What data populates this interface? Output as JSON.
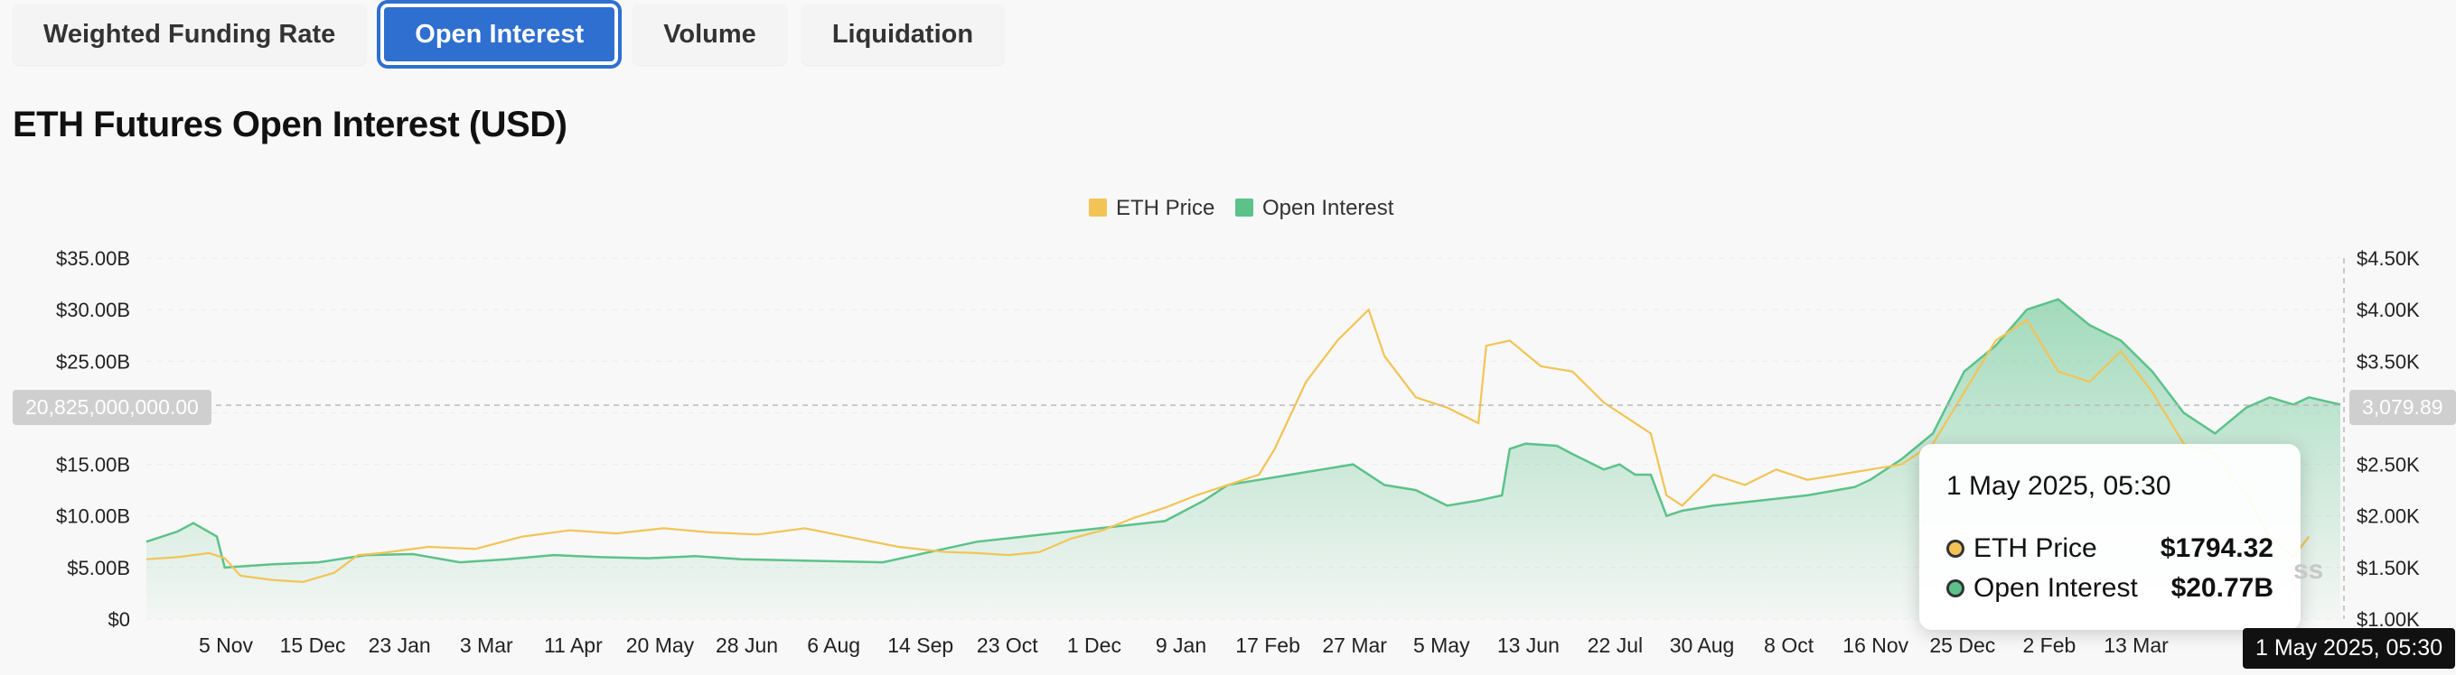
{
  "tabs": [
    {
      "label": "Weighted Funding Rate",
      "active": false
    },
    {
      "label": "Open Interest",
      "active": true
    },
    {
      "label": "Volume",
      "active": false
    },
    {
      "label": "Liquidation",
      "active": false
    }
  ],
  "title": "ETH Futures Open Interest (USD)",
  "colors": {
    "eth_price": "#f2c456",
    "open_interest": "#5cc28a",
    "accent": "#2f6fd0"
  },
  "tooltip": {
    "date": "1 May 2025, 05:30",
    "rows": [
      {
        "label": "ETH Price",
        "value": "$1794.32"
      },
      {
        "label": "Open Interest",
        "value": "$20.77B"
      }
    ]
  },
  "crosshair": {
    "left_value": "20,825,000,000.00",
    "right_value": "3,079.89",
    "date": "1 May 2025, 05:30"
  },
  "watermark": "ss",
  "chart_data": {
    "type": "area",
    "legend": [
      "ETH Price",
      "Open Interest"
    ],
    "legend_position": "top-center",
    "grid": true,
    "x_ticks": [
      "5 Nov",
      "15 Dec",
      "23 Jan",
      "3 Mar",
      "11 Apr",
      "20 May",
      "28 Jun",
      "6 Aug",
      "14 Sep",
      "23 Oct",
      "1 Dec",
      "9 Jan",
      "17 Feb",
      "27 Mar",
      "5 May",
      "13 Jun",
      "22 Jul",
      "30 Aug",
      "8 Oct",
      "16 Nov",
      "25 Dec",
      "2 Feb",
      "13 Mar"
    ],
    "y_left": {
      "ticks": [
        "$0",
        "$5.00B",
        "$10.00B",
        "$15.00B",
        "$20.00B",
        "$25.00B",
        "$30.00B",
        "$35.00B"
      ],
      "range": [
        0,
        35
      ],
      "unit": "B USD"
    },
    "y_right": {
      "ticks": [
        "$1.00K",
        "$1.50K",
        "$2.00K",
        "$2.50K",
        "$3.00K",
        "$3.50K",
        "$4.00K",
        "$4.50K"
      ],
      "range": [
        1000,
        4500
      ]
    },
    "series": [
      {
        "name": "Open Interest",
        "axis": "left",
        "points": [
          [
            0,
            7.5
          ],
          [
            0.02,
            8.5
          ],
          [
            0.03,
            9.3
          ],
          [
            0.045,
            8
          ],
          [
            0.05,
            5
          ],
          [
            0.08,
            5.3
          ],
          [
            0.11,
            5.5
          ],
          [
            0.14,
            6.2
          ],
          [
            0.17,
            6.3
          ],
          [
            0.2,
            5.5
          ],
          [
            0.23,
            5.8
          ],
          [
            0.26,
            6.2
          ],
          [
            0.29,
            6.0
          ],
          [
            0.32,
            5.9
          ],
          [
            0.35,
            6.1
          ],
          [
            0.38,
            5.8
          ],
          [
            0.41,
            5.7
          ],
          [
            0.44,
            5.6
          ],
          [
            0.47,
            5.5
          ],
          [
            0.5,
            6.5
          ],
          [
            0.53,
            7.5
          ],
          [
            0.56,
            8.0
          ],
          [
            0.59,
            8.5
          ],
          [
            0.62,
            9.0
          ],
          [
            0.65,
            9.5
          ],
          [
            0.675,
            11.5
          ],
          [
            0.69,
            13
          ],
          [
            0.71,
            13.5
          ],
          [
            0.73,
            14
          ],
          [
            0.75,
            14.5
          ],
          [
            0.77,
            15
          ],
          [
            0.79,
            13
          ],
          [
            0.81,
            12.5
          ],
          [
            0.83,
            11
          ],
          [
            0.85,
            11.5
          ],
          [
            0.865,
            12
          ],
          [
            0.87,
            16.5
          ],
          [
            0.88,
            17
          ],
          [
            0.9,
            16.8
          ],
          [
            0.91,
            16
          ],
          [
            0.93,
            14.5
          ],
          [
            0.94,
            15
          ],
          [
            0.95,
            14
          ],
          [
            0.96,
            14
          ],
          [
            0.97,
            10
          ],
          [
            0.98,
            10.5
          ],
          [
            1.0,
            11
          ],
          [
            1.03,
            11.5
          ],
          [
            1.06,
            12
          ],
          [
            1.09,
            12.8
          ],
          [
            1.1,
            13.5
          ],
          [
            1.12,
            15.5
          ],
          [
            1.14,
            18
          ],
          [
            1.16,
            24
          ],
          [
            1.18,
            26.5
          ],
          [
            1.2,
            30
          ],
          [
            1.22,
            31
          ],
          [
            1.24,
            28.5
          ],
          [
            1.26,
            27
          ],
          [
            1.28,
            24
          ],
          [
            1.3,
            20
          ],
          [
            1.32,
            18
          ],
          [
            1.34,
            20.5
          ],
          [
            1.355,
            21.5
          ],
          [
            1.37,
            20.8
          ],
          [
            1.38,
            21.5
          ],
          [
            1.4,
            20.8
          ]
        ]
      },
      {
        "name": "ETH Price",
        "axis": "right",
        "points": [
          [
            0,
            1580
          ],
          [
            0.02,
            1600
          ],
          [
            0.04,
            1640
          ],
          [
            0.05,
            1590
          ],
          [
            0.06,
            1420
          ],
          [
            0.08,
            1380
          ],
          [
            0.1,
            1360
          ],
          [
            0.12,
            1450
          ],
          [
            0.135,
            1620
          ],
          [
            0.15,
            1640
          ],
          [
            0.18,
            1700
          ],
          [
            0.21,
            1680
          ],
          [
            0.24,
            1800
          ],
          [
            0.27,
            1860
          ],
          [
            0.3,
            1830
          ],
          [
            0.33,
            1880
          ],
          [
            0.36,
            1840
          ],
          [
            0.39,
            1820
          ],
          [
            0.42,
            1880
          ],
          [
            0.45,
            1790
          ],
          [
            0.48,
            1700
          ],
          [
            0.51,
            1650
          ],
          [
            0.53,
            1640
          ],
          [
            0.55,
            1620
          ],
          [
            0.57,
            1650
          ],
          [
            0.59,
            1780
          ],
          [
            0.61,
            1860
          ],
          [
            0.63,
            1980
          ],
          [
            0.65,
            2080
          ],
          [
            0.67,
            2200
          ],
          [
            0.69,
            2300
          ],
          [
            0.71,
            2400
          ],
          [
            0.72,
            2650
          ],
          [
            0.74,
            3300
          ],
          [
            0.76,
            3700
          ],
          [
            0.78,
            4000
          ],
          [
            0.79,
            3550
          ],
          [
            0.81,
            3150
          ],
          [
            0.83,
            3050
          ],
          [
            0.85,
            2900
          ],
          [
            0.855,
            3650
          ],
          [
            0.87,
            3700
          ],
          [
            0.89,
            3450
          ],
          [
            0.91,
            3400
          ],
          [
            0.93,
            3100
          ],
          [
            0.95,
            2900
          ],
          [
            0.96,
            2800
          ],
          [
            0.97,
            2200
          ],
          [
            0.98,
            2100
          ],
          [
            1.0,
            2400
          ],
          [
            1.02,
            2300
          ],
          [
            1.04,
            2450
          ],
          [
            1.06,
            2350
          ],
          [
            1.08,
            2400
          ],
          [
            1.1,
            2450
          ],
          [
            1.12,
            2500
          ],
          [
            1.14,
            2700
          ],
          [
            1.16,
            3200
          ],
          [
            1.18,
            3700
          ],
          [
            1.2,
            3900
          ],
          [
            1.22,
            3400
          ],
          [
            1.24,
            3300
          ],
          [
            1.26,
            3600
          ],
          [
            1.28,
            3200
          ],
          [
            1.3,
            2700
          ],
          [
            1.32,
            2600
          ],
          [
            1.34,
            2200
          ],
          [
            1.355,
            1800
          ],
          [
            1.37,
            1600
          ],
          [
            1.38,
            1800
          ]
        ]
      }
    ]
  }
}
